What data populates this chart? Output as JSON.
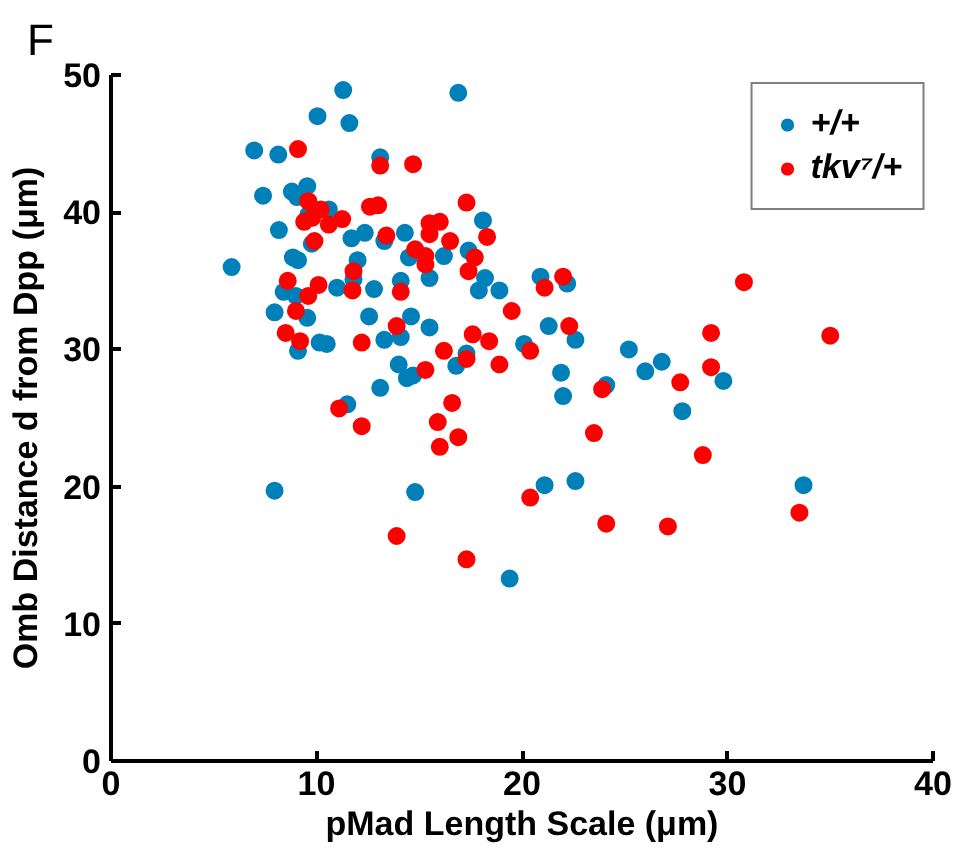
{
  "chart_data": {
    "type": "scatter",
    "title": "F",
    "xlabel": "pMad Length Scale (μm)",
    "ylabel": "Omb Distance d from Dpp (μm)",
    "xlim": [
      0,
      40
    ],
    "ylim": [
      0,
      50
    ],
    "xticks": [
      0,
      10,
      20,
      30,
      40
    ],
    "yticks": [
      0,
      10,
      20,
      30,
      40,
      50
    ],
    "grid": false,
    "legend": "top right",
    "marker": "circle",
    "series": [
      {
        "name": "+/+",
        "color": "#0080b8",
        "x": [
          11.3,
          10.05,
          11.6,
          6.97,
          8.14,
          13.1,
          7.4,
          8.8,
          9.55,
          9.05,
          10.6,
          9.6,
          8.17,
          11.7,
          12.35,
          9.77,
          5.87,
          8.85,
          9.1,
          12.0,
          11.8,
          11.0,
          12.8,
          8.4,
          9.0,
          7.96,
          9.55,
          12.56,
          10.15,
          10.5,
          13.3,
          9.1,
          13.1,
          11.5,
          7.96,
          16.9,
          13.3,
          14.3,
          14.5,
          18.1,
          16.2,
          17.4,
          15.5,
          14.1,
          18.2,
          17.9,
          18.9,
          20.9,
          22.2,
          14.6,
          14.1,
          15.5,
          21.3,
          22.6,
          20.1,
          17.3,
          16.8,
          14.0,
          14.4,
          14.7,
          21.9,
          22.0,
          24.1,
          25.2,
          26.0,
          26.8,
          27.8,
          29.8,
          14.8,
          21.1,
          22.6,
          19.4,
          33.7
        ],
        "values": [
          48.9,
          47.0,
          46.5,
          44.5,
          44.2,
          44.0,
          41.2,
          41.5,
          41.9,
          41.1,
          40.2,
          39.8,
          38.7,
          38.1,
          38.5,
          37.7,
          36.0,
          36.7,
          36.5,
          36.5,
          35.1,
          34.5,
          34.4,
          34.2,
          33.9,
          32.7,
          32.3,
          32.4,
          30.5,
          30.4,
          30.7,
          29.9,
          27.2,
          26.0,
          19.7,
          48.7,
          37.9,
          38.5,
          36.7,
          39.4,
          36.8,
          37.2,
          35.2,
          35.0,
          35.2,
          34.3,
          34.3,
          35.3,
          34.8,
          32.4,
          30.9,
          31.6,
          31.7,
          30.7,
          30.4,
          29.7,
          28.8,
          28.9,
          27.9,
          28.1,
          28.3,
          26.6,
          27.4,
          30.0,
          28.4,
          29.1,
          25.5,
          27.7,
          19.6,
          20.1,
          20.4,
          13.3,
          20.1
        ]
      },
      {
        "name": "tkv⁷/+",
        "color": "#ff0000",
        "x": [
          9.1,
          13.1,
          9.6,
          10.2,
          9.8,
          9.4,
          10.6,
          11.25,
          12.6,
          13.0,
          9.9,
          13.4,
          11.8,
          8.6,
          10.1,
          9.6,
          11.75,
          9.0,
          8.5,
          9.2,
          12.2,
          11.1,
          12.2,
          14.7,
          17.3,
          15.5,
          16.0,
          15.5,
          16.5,
          18.3,
          14.8,
          15.3,
          15.3,
          17.7,
          17.4,
          14.1,
          22.0,
          21.1,
          19.5,
          13.9,
          17.6,
          18.4,
          22.3,
          16.2,
          17.3,
          15.3,
          18.9,
          20.4,
          16.6,
          15.9,
          16.9,
          16.0,
          23.9,
          23.5,
          27.7,
          29.2,
          29.2,
          28.8,
          30.8,
          35.0,
          20.4,
          13.9,
          17.3,
          24.1,
          27.1,
          33.5
        ],
        "values": [
          44.6,
          43.4,
          40.8,
          40.2,
          39.6,
          39.3,
          39.1,
          39.5,
          40.4,
          40.5,
          37.9,
          38.3,
          35.7,
          35.0,
          34.7,
          33.9,
          34.3,
          32.8,
          31.2,
          30.6,
          30.5,
          25.7,
          24.4,
          43.5,
          40.7,
          39.2,
          39.3,
          38.4,
          37.9,
          38.2,
          37.3,
          36.8,
          36.2,
          36.7,
          35.7,
          34.2,
          35.3,
          34.5,
          32.8,
          31.7,
          31.1,
          30.6,
          31.7,
          29.9,
          29.3,
          28.5,
          28.9,
          29.9,
          26.1,
          24.7,
          23.6,
          22.9,
          27.1,
          23.9,
          27.6,
          31.2,
          28.7,
          22.3,
          34.9,
          31.0,
          19.2,
          16.4,
          14.7,
          17.3,
          17.1,
          18.1
        ]
      }
    ]
  }
}
